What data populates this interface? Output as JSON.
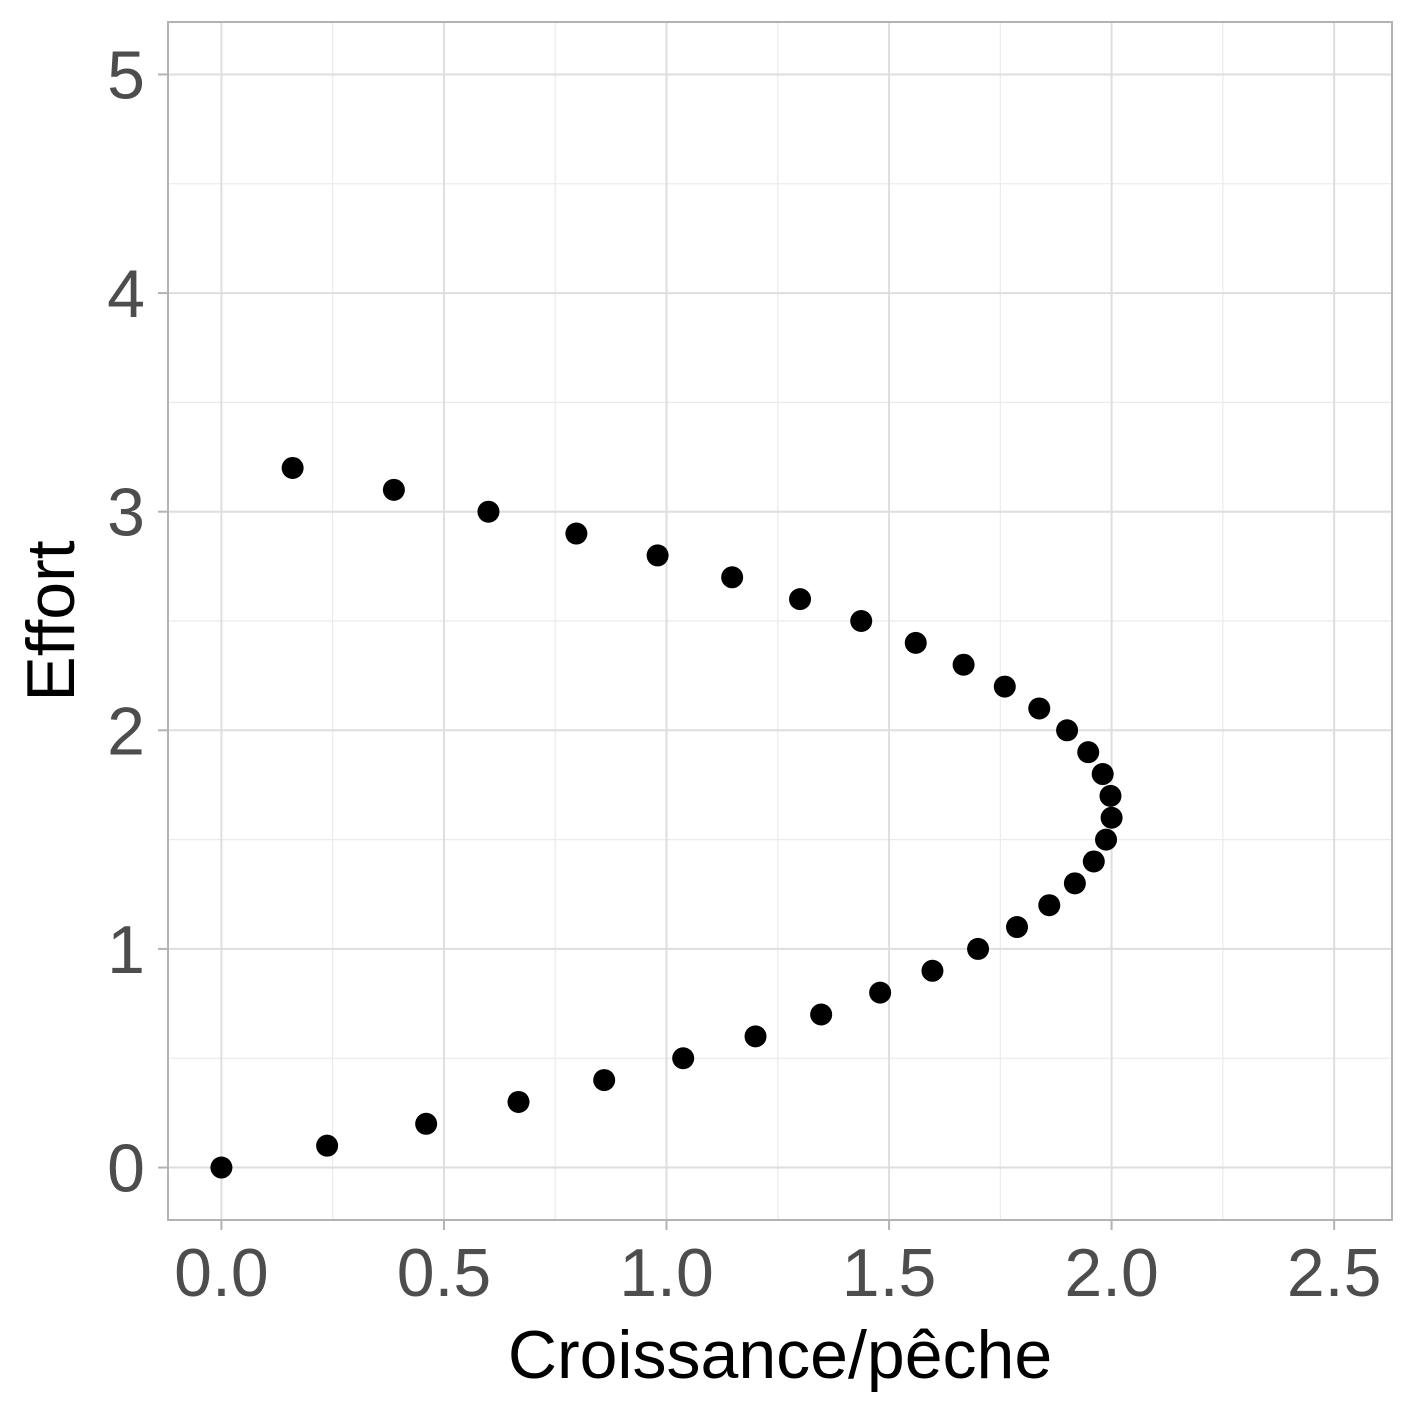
{
  "chart_data": {
    "type": "scatter",
    "title": "",
    "xlabel": "Croissance/pêche",
    "ylabel": "Effort",
    "xlim": [
      -0.12,
      2.63
    ],
    "ylim": [
      -0.24,
      5.24
    ],
    "x_ticks": [
      0.0,
      0.5,
      1.0,
      1.5,
      2.0,
      2.5
    ],
    "x_tick_labels": [
      "0.0",
      "0.5",
      "1.0",
      "1.5",
      "2.0",
      "2.5"
    ],
    "y_ticks": [
      0,
      1,
      2,
      3,
      4,
      5
    ],
    "y_tick_labels": [
      "0",
      "1",
      "2",
      "3",
      "4",
      "5"
    ],
    "grid": true,
    "series": [
      {
        "marker_color": "#000000",
        "points": [
          {
            "x": 0.0,
            "y": 0.0
          },
          {
            "x": 0.2375,
            "y": 0.1
          },
          {
            "x": 0.46,
            "y": 0.2
          },
          {
            "x": 0.6675,
            "y": 0.3
          },
          {
            "x": 0.86,
            "y": 0.4
          },
          {
            "x": 1.0375,
            "y": 0.5
          },
          {
            "x": 1.2,
            "y": 0.6
          },
          {
            "x": 1.3475,
            "y": 0.7
          },
          {
            "x": 1.48,
            "y": 0.8
          },
          {
            "x": 1.5975,
            "y": 0.9
          },
          {
            "x": 1.7,
            "y": 1.0
          },
          {
            "x": 1.7875,
            "y": 1.1
          },
          {
            "x": 1.86,
            "y": 1.2
          },
          {
            "x": 1.9175,
            "y": 1.3
          },
          {
            "x": 1.96,
            "y": 1.4
          },
          {
            "x": 1.9875,
            "y": 1.5
          },
          {
            "x": 2.0,
            "y": 1.6
          },
          {
            "x": 1.9975,
            "y": 1.7
          },
          {
            "x": 1.98,
            "y": 1.8
          },
          {
            "x": 1.9475,
            "y": 1.9
          },
          {
            "x": 1.9,
            "y": 2.0
          },
          {
            "x": 1.8375,
            "y": 2.1
          },
          {
            "x": 1.76,
            "y": 2.2
          },
          {
            "x": 1.6675,
            "y": 2.3
          },
          {
            "x": 1.56,
            "y": 2.4
          },
          {
            "x": 1.4375,
            "y": 2.5
          },
          {
            "x": 1.3,
            "y": 2.6
          },
          {
            "x": 1.1475,
            "y": 2.7
          },
          {
            "x": 0.98,
            "y": 2.8
          },
          {
            "x": 0.7975,
            "y": 2.9
          },
          {
            "x": 0.6,
            "y": 3.0
          },
          {
            "x": 0.3875,
            "y": 3.1
          },
          {
            "x": 0.16,
            "y": 3.2
          }
        ]
      }
    ]
  }
}
